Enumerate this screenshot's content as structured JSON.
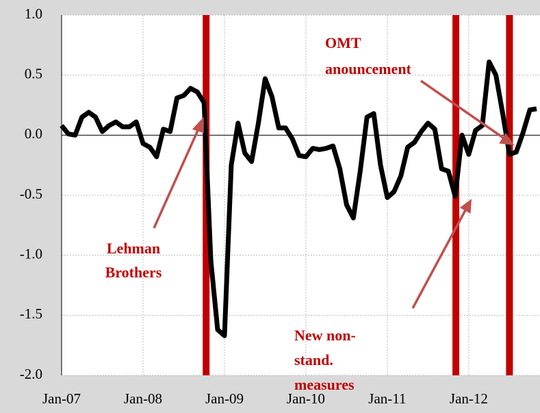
{
  "chart_data": {
    "type": "line",
    "categories": [
      "Jan-07",
      null,
      null,
      null,
      null,
      null,
      null,
      null,
      null,
      null,
      null,
      null,
      "Jan-08",
      null,
      null,
      null,
      null,
      null,
      null,
      null,
      null,
      null,
      null,
      null,
      "Jan-09",
      null,
      null,
      null,
      null,
      null,
      null,
      null,
      null,
      null,
      null,
      null,
      "Jan-10",
      null,
      null,
      null,
      null,
      null,
      null,
      null,
      null,
      null,
      null,
      null,
      "Jan-11",
      null,
      null,
      null,
      null,
      null,
      null,
      null,
      null,
      null,
      null,
      null,
      "Jan-12",
      null,
      null,
      null,
      null,
      null,
      null,
      null,
      null,
      null,
      null
    ],
    "series": [
      {
        "color": "#000000",
        "values": [
          0.08,
          0.01,
          0.0,
          0.15,
          0.19,
          0.15,
          0.03,
          0.08,
          0.11,
          0.07,
          0.07,
          0.11,
          -0.07,
          -0.1,
          -0.18,
          0.05,
          0.03,
          0.31,
          0.33,
          0.39,
          0.36,
          0.27,
          -1.05,
          -1.62,
          -1.67,
          -0.25,
          0.1,
          -0.15,
          -0.22,
          0.1,
          0.47,
          0.32,
          0.06,
          0.06,
          -0.03,
          -0.17,
          -0.18,
          -0.11,
          -0.12,
          -0.11,
          -0.09,
          -0.28,
          -0.58,
          -0.69,
          -0.3,
          0.15,
          0.18,
          -0.25,
          -0.52,
          -0.47,
          -0.34,
          -0.1,
          -0.06,
          0.03,
          0.1,
          0.05,
          -0.28,
          -0.3,
          -0.51,
          0.0,
          -0.16,
          0.04,
          0.08,
          0.61,
          0.5,
          0.18,
          -0.16,
          -0.14,
          0.02,
          0.21,
          0.22
        ]
      }
    ],
    "ylim": [
      -2.0,
      1.0
    ],
    "yticks": [
      {
        "value": 1.0,
        "label": "1.0"
      },
      {
        "value": 0.5,
        "label": "0.5"
      },
      {
        "value": 0.0,
        "label": "0.0"
      },
      {
        "value": -0.5,
        "label": "-0.5"
      },
      {
        "value": -1.0,
        "label": "-1.0"
      },
      {
        "value": -1.5,
        "label": "-1.5"
      },
      {
        "value": -2.0,
        "label": "-2.0"
      }
    ],
    "grid": true,
    "event_lines": {
      "color": "#c00000",
      "x": [
        21.3,
        58.1,
        66.0
      ]
    },
    "annotations": [
      {
        "lines": [
          "Lehman",
          "Brothers"
        ]
      },
      {
        "lines": [
          "OMT",
          "anouncement"
        ]
      },
      {
        "lines": [
          "New non-",
          "stand.",
          "measures"
        ]
      }
    ]
  }
}
